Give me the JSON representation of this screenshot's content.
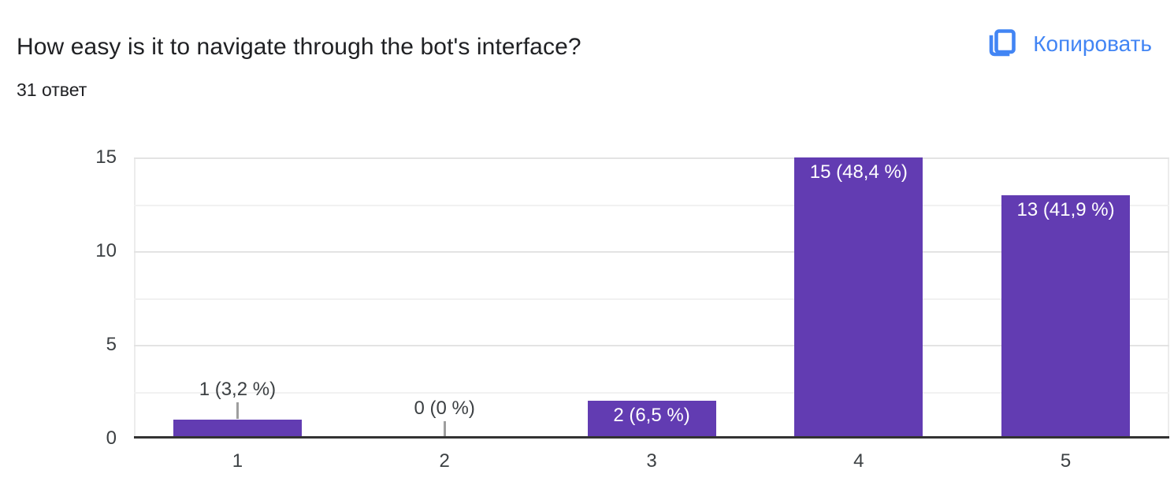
{
  "header": {
    "title": "How easy is it to navigate through the bot's interface?",
    "responses_count": "31 ответ",
    "copy_button_label": "Копировать",
    "copy_icon": "copy-icon"
  },
  "colors": {
    "bar": "#623cb2",
    "accent": "#4285f4",
    "axis_line": "#333333",
    "gridline_major": "#e3e3e3",
    "gridline_minor": "#f1f1f1",
    "plot_border": "#ececec",
    "stem": "#9e9e9e",
    "title_text": "#202124",
    "tick_text": "#3c4043",
    "annotation_outside": "#3c4043",
    "annotation_inside": "#ffffff"
  },
  "chart_data": {
    "type": "bar",
    "title": "How easy is it to navigate through the bot's interface?",
    "subtitle": "31 ответ",
    "categories": [
      "1",
      "2",
      "3",
      "4",
      "5"
    ],
    "values": [
      1,
      0,
      2,
      15,
      13
    ],
    "percentages": [
      3.2,
      0,
      6.5,
      48.4,
      41.9
    ],
    "annotations": [
      "1 (3,2 %)",
      "0 (0 %)",
      "2 (6,5 %)",
      "15 (48,4 %)",
      "13 (41,9 %)"
    ],
    "xlabel": "",
    "ylabel": "",
    "y_ticks": [
      0,
      5,
      10,
      15
    ],
    "ylim": [
      0,
      15
    ],
    "minor_gridline_step": 2.5,
    "grid": true,
    "legend": "none"
  }
}
